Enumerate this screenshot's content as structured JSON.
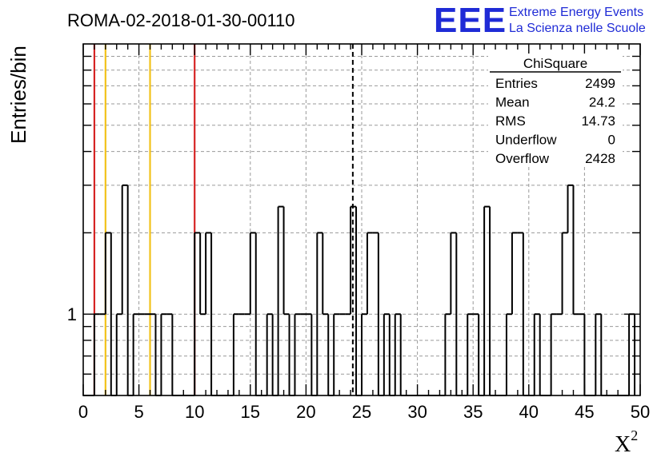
{
  "chart_data": {
    "type": "bar",
    "title": "ROMA-02-2018-01-30-00110",
    "xlabel": "X",
    "xlabel_sup": "2",
    "ylabel": "Entries/bin",
    "xlim": [
      0,
      50
    ],
    "ylim": [
      0.5,
      10
    ],
    "yscale": "log",
    "grid": true,
    "xticks": [
      "0",
      "5",
      "10",
      "15",
      "20",
      "25",
      "30",
      "35",
      "40",
      "45",
      "50"
    ],
    "yticks": [
      "1"
    ],
    "bin_width": 0.5,
    "bins": [
      {
        "x": 1.0,
        "y": 1
      },
      {
        "x": 1.5,
        "y": 1
      },
      {
        "x": 2.0,
        "y": 2
      },
      {
        "x": 3.0,
        "y": 1
      },
      {
        "x": 3.5,
        "y": 3
      },
      {
        "x": 4.5,
        "y": 1
      },
      {
        "x": 5.0,
        "y": 1
      },
      {
        "x": 5.5,
        "y": 1
      },
      {
        "x": 6.0,
        "y": 1
      },
      {
        "x": 7.0,
        "y": 1
      },
      {
        "x": 7.5,
        "y": 1
      },
      {
        "x": 10.0,
        "y": 2
      },
      {
        "x": 10.5,
        "y": 1
      },
      {
        "x": 11.0,
        "y": 2
      },
      {
        "x": 13.5,
        "y": 1
      },
      {
        "x": 14.0,
        "y": 1
      },
      {
        "x": 14.5,
        "y": 1
      },
      {
        "x": 15.0,
        "y": 2
      },
      {
        "x": 16.5,
        "y": 1
      },
      {
        "x": 17.5,
        "y": 2.5
      },
      {
        "x": 18.0,
        "y": 1
      },
      {
        "x": 19.0,
        "y": 1
      },
      {
        "x": 19.5,
        "y": 1
      },
      {
        "x": 20.0,
        "y": 1
      },
      {
        "x": 21.0,
        "y": 2
      },
      {
        "x": 21.5,
        "y": 1
      },
      {
        "x": 22.5,
        "y": 1
      },
      {
        "x": 23.0,
        "y": 1
      },
      {
        "x": 23.5,
        "y": 1
      },
      {
        "x": 24.0,
        "y": 2.5
      },
      {
        "x": 25.0,
        "y": 1
      },
      {
        "x": 25.5,
        "y": 2
      },
      {
        "x": 26.0,
        "y": 2
      },
      {
        "x": 27.0,
        "y": 1
      },
      {
        "x": 28.0,
        "y": 1
      },
      {
        "x": 32.5,
        "y": 1
      },
      {
        "x": 33.0,
        "y": 2
      },
      {
        "x": 34.5,
        "y": 1
      },
      {
        "x": 35.0,
        "y": 1
      },
      {
        "x": 36.0,
        "y": 2.5
      },
      {
        "x": 38.0,
        "y": 1
      },
      {
        "x": 38.5,
        "y": 2
      },
      {
        "x": 39.0,
        "y": 2
      },
      {
        "x": 40.5,
        "y": 1
      },
      {
        "x": 42.0,
        "y": 1
      },
      {
        "x": 42.5,
        "y": 1
      },
      {
        "x": 43.0,
        "y": 2
      },
      {
        "x": 43.5,
        "y": 3
      },
      {
        "x": 44.0,
        "y": 1
      },
      {
        "x": 44.5,
        "y": 1
      },
      {
        "x": 46.0,
        "y": 1
      },
      {
        "x": 49.0,
        "y": 1
      }
    ],
    "vertical_lines": [
      {
        "x": 1.0,
        "color": "#d62424",
        "style": "solid"
      },
      {
        "x": 2.0,
        "color": "#f2c21b",
        "style": "solid"
      },
      {
        "x": 6.0,
        "color": "#f2c21b",
        "style": "solid"
      },
      {
        "x": 10.0,
        "color": "#d62424",
        "style": "solid"
      },
      {
        "x": 24.2,
        "color": "#000000",
        "style": "dashed"
      }
    ],
    "stats": {
      "title": "ChiSquare",
      "rows": [
        {
          "label": "Entries",
          "value": "2499"
        },
        {
          "label": "Mean",
          "value": "24.2"
        },
        {
          "label": "RMS",
          "value": "14.73"
        },
        {
          "label": "Underflow",
          "value": "0"
        },
        {
          "label": "Overflow",
          "value": "2428"
        }
      ]
    }
  },
  "logo": {
    "mark": "EEE",
    "line1": "Extreme Energy Events",
    "line2": "La Scienza nelle Scuole",
    "color": "#1f2bd6"
  }
}
